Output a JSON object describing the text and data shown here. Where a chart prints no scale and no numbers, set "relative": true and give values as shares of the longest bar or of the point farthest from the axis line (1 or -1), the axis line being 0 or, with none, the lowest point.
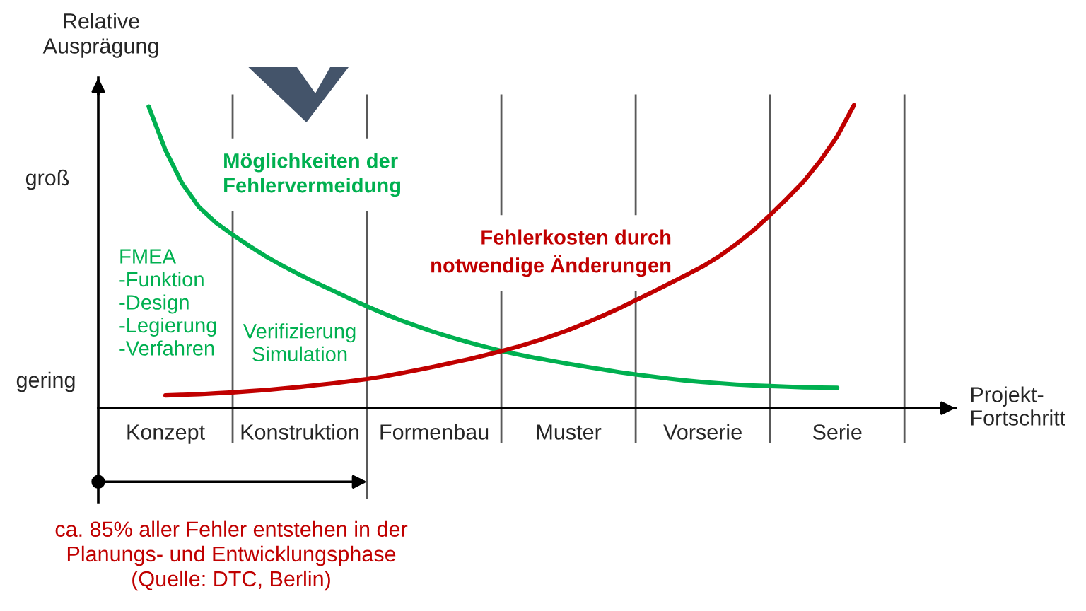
{
  "chart_data": {
    "type": "line",
    "relative": true,
    "grid": "x",
    "ylabel": "Relative\nAusprägung",
    "xlabel": "Projekt-\nFortschritt",
    "categories": [
      null,
      null,
      null,
      null,
      "Konzept",
      null,
      null,
      null,
      null,
      null,
      null,
      null,
      "Konstruktion",
      null,
      null,
      null,
      null,
      null,
      null,
      null,
      "Formenbau",
      null,
      null,
      null,
      null,
      null,
      null,
      null,
      "Muster",
      null,
      null,
      null,
      null,
      null,
      null,
      null,
      "Vorserie",
      null,
      null,
      null,
      null,
      null,
      null,
      null,
      "Serie",
      null,
      null,
      null,
      null
    ],
    "series": [
      {
        "name": "Möglichkeiten der\nFehlervermeidung",
        "color": "#00b050",
        "values": [
          null,
          null,
          null,
          0.995,
          0.851,
          0.741,
          0.663,
          0.612,
          0.572,
          0.535,
          0.5,
          0.469,
          0.44,
          0.413,
          0.387,
          0.361,
          0.336,
          0.312,
          0.29,
          0.27,
          0.251,
          0.234,
          0.218,
          0.203,
          0.189,
          0.177,
          0.166,
          0.156,
          0.146,
          0.137,
          0.128,
          0.119,
          0.111,
          0.104,
          0.097,
          0.091,
          0.086,
          0.082,
          0.078,
          0.075,
          0.073,
          0.071,
          0.069,
          0.068,
          0.067,
          null,
          null,
          null,
          null
        ]
      },
      {
        "name": "Fehlerkosten durch\nnotwendige Änderungen",
        "color": "#c00000",
        "values": [
          null,
          null,
          null,
          null,
          0.042,
          0.044,
          0.046,
          0.049,
          0.052,
          0.056,
          0.06,
          0.065,
          0.07,
          0.076,
          0.082,
          0.089,
          0.096,
          0.105,
          0.115,
          0.126,
          0.137,
          0.149,
          0.161,
          0.174,
          0.188,
          0.203,
          0.22,
          0.238,
          0.258,
          0.28,
          0.304,
          0.329,
          0.356,
          0.383,
          0.411,
          0.439,
          0.468,
          0.502,
          0.542,
          0.586,
          0.637,
          0.691,
          0.748,
          0.817,
          0.897,
          1.0,
          null,
          null,
          null
        ]
      }
    ],
    "annotations": [
      "groß",
      "gering",
      "FMEA\n-Funktion\n-Design\n-Legierung\n-Verfahren",
      "Verifizierung\nSimulation",
      "ca. 85% aller Fehler entstehen in der\nPlanungs- und Entwicklungsphase\n(Quelle: DTC, Berlin)"
    ]
  }
}
